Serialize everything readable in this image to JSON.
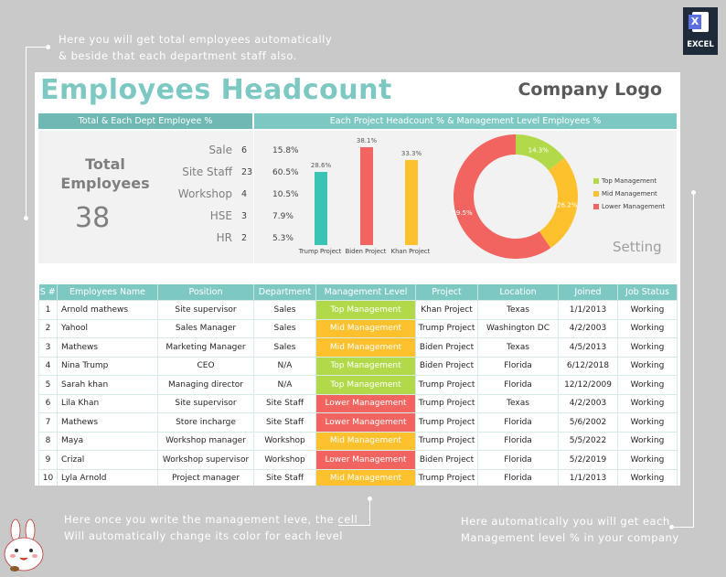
{
  "notes": {
    "top": [
      "Here you will get total employees automatically",
      "& beside that each department staff also."
    ],
    "bottom_middle": [
      "Here once you write the management leve, the cell",
      "Will automatically change its color for each level"
    ],
    "bottom_right": [
      "Here automatically you will get each",
      "Management level % in your company"
    ]
  },
  "excel_badge": {
    "letter": "X",
    "label": "EXCEL"
  },
  "header": {
    "title": "Employees Headcount",
    "logo": "Company Logo"
  },
  "sections": {
    "left": "Total & Each Dept Employee %",
    "right": "Each Project Headcount % & Management Level Employees %"
  },
  "summary": {
    "label_line1": "Total",
    "label_line2": "Employees",
    "total": "38",
    "setting": "Setting"
  },
  "departments": [
    {
      "name": "Sale",
      "count": "6",
      "pct": "15.8%"
    },
    {
      "name": "Site Staff",
      "count": "23",
      "pct": "60.5%"
    },
    {
      "name": "Workshop",
      "count": "4",
      "pct": "10.5%"
    },
    {
      "name": "HSE",
      "count": "3",
      "pct": "7.9%"
    },
    {
      "name": "HR",
      "count": "2",
      "pct": "5.3%"
    }
  ],
  "colors": {
    "teal": "#7ec8c4",
    "top": "#b2d94a",
    "mid": "#fcc12c",
    "lower": "#f2645f",
    "bar_trump": "#3cc4b2",
    "bar_biden": "#f2645f",
    "bar_khan": "#fcc12c"
  },
  "chart_data": [
    {
      "type": "bar",
      "categories": [
        "Trump Project",
        "Biden Project",
        "Khan Project"
      ],
      "values": [
        28.6,
        38.1,
        33.3
      ],
      "data_labels": [
        "28.6%",
        "38.1%",
        "33.3%"
      ],
      "ylim": [
        0,
        40
      ]
    },
    {
      "type": "pie",
      "donut": true,
      "categories": [
        "Top Management",
        "Mid Management",
        "Lower Management"
      ],
      "values": [
        14.3,
        26.2,
        59.5
      ],
      "data_labels": [
        "14.3%",
        "26.2%",
        "59.5%"
      ],
      "legend": "right"
    }
  ],
  "table": {
    "columns": [
      "S #",
      "Employees Name",
      "Position",
      "Department",
      "Management Level",
      "Project",
      "Location",
      "Joined",
      "Job Status"
    ],
    "rows": [
      [
        "1",
        "Arnold mathews",
        "Site supervisor",
        "Sales",
        "Top Management",
        "Khan Project",
        "Texas",
        "1/1/2013",
        "Working"
      ],
      [
        "2",
        "Yahool",
        "Sales Manager",
        "Sales",
        "Mid Management",
        "Trump Project",
        "Washington DC",
        "4/2/2003",
        "Working"
      ],
      [
        "3",
        "Mathews",
        "Marketing Manager",
        "Sales",
        "Mid Management",
        "Biden Project",
        "Texas",
        "4/5/2013",
        "Working"
      ],
      [
        "4",
        "Nina Trump",
        "CEO",
        "N/A",
        "Top Management",
        "Biden Project",
        "Florida",
        "6/12/2018",
        "Working"
      ],
      [
        "5",
        "Sarah khan",
        "Managing director",
        "N/A",
        "Top Management",
        "Trump Project",
        "Florida",
        "12/12/2009",
        "Working"
      ],
      [
        "6",
        "Lila Khan",
        "Site supervisor",
        "Site Staff",
        "Lower Management",
        "Trump Project",
        "Texas",
        "4/2/2003",
        "Working"
      ],
      [
        "7",
        "Mathews",
        "Store incharge",
        "Site Staff",
        "Lower Management",
        "Trump Project",
        "Florida",
        "5/6/2002",
        "Working"
      ],
      [
        "8",
        "Maya",
        "Workshop manager",
        "Workshop",
        "Mid Management",
        "Trump Project",
        "Florida",
        "5/5/2022",
        "Working"
      ],
      [
        "9",
        "Crizal",
        "Workshop supervisor",
        "Workshop",
        "Lower Management",
        "Biden Project",
        "Florida",
        "5/2/2019",
        "Working"
      ],
      [
        "10",
        "Lyla Arnold",
        "Project manager",
        "Site Staff",
        "Mid Management",
        "Trump Project",
        "Florida",
        "1/1/2013",
        "Working"
      ]
    ]
  }
}
